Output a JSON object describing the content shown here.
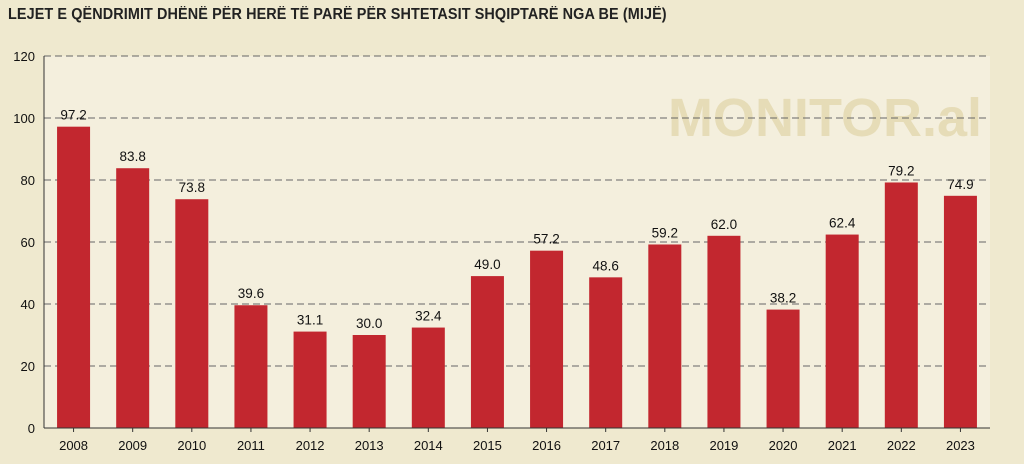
{
  "title": "LEJET E QËNDRIMIT DHËNË PËR HERË TË PARË PËR SHTETASIT SHQIPTARË NGA BE (MIJË)",
  "watermark": "MONITOR.al",
  "colors": {
    "bar": "#c2272f",
    "plot_bg": "#f4efdd",
    "page_bg": "#efe9cf",
    "grid": "#666666"
  },
  "chart_data": {
    "type": "bar",
    "categories": [
      "2008",
      "2009",
      "2010",
      "2011",
      "2012",
      "2013",
      "2014",
      "2015",
      "2016",
      "2017",
      "2018",
      "2019",
      "2020",
      "2021",
      "2022",
      "2023"
    ],
    "values": [
      97.2,
      83.8,
      73.8,
      39.6,
      31.1,
      30.0,
      32.4,
      49.0,
      57.2,
      48.6,
      59.2,
      62.0,
      38.2,
      62.4,
      79.2,
      74.9
    ],
    "data_labels": [
      "97.2",
      "83.8",
      "73.8",
      "39.6",
      "31.1",
      "30.0",
      "32.4",
      "49.0",
      "57.2",
      "48.6",
      "59.2",
      "62.0",
      "38.2",
      "62.4",
      "79.2",
      "74.9"
    ],
    "title": "LEJET E QËNDRIMIT DHËNË PËR HERË TË PARË PËR SHTETASIT SHQIPTARË NGA BE (MIJË)",
    "xlabel": "",
    "ylabel": "",
    "ylim": [
      0,
      120
    ],
    "yticks": [
      0,
      20,
      40,
      60,
      80,
      100,
      120
    ],
    "grid": true,
    "legend": "none"
  }
}
